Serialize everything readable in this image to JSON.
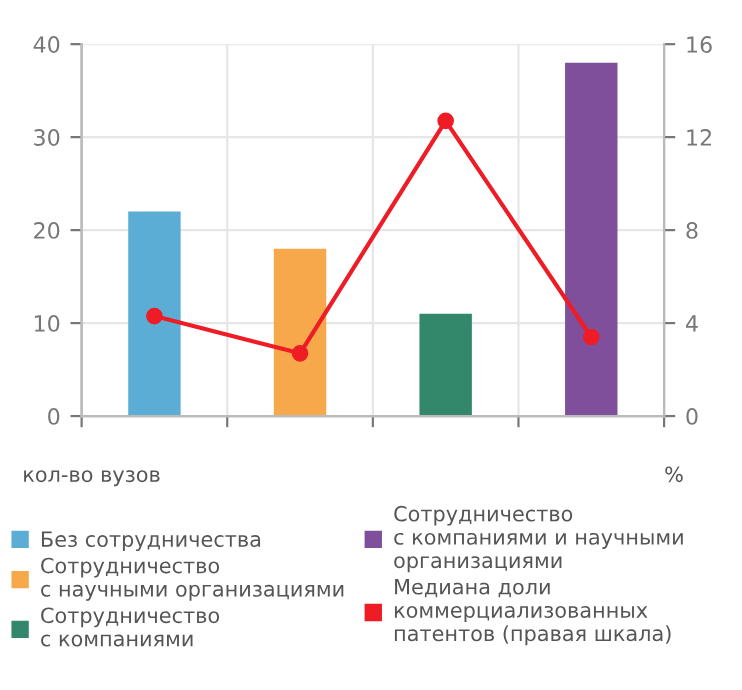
{
  "chart_data": {
    "type": "bar",
    "categories": [
      null,
      null,
      null,
      null
    ],
    "series": [
      {
        "name": "Без сотрудничества",
        "color": "#5badd6",
        "values": [
          22,
          null,
          null,
          null
        ]
      },
      {
        "name": "Сотрудничество\nс научными организациями",
        "color": "#f7a84a",
        "values": [
          null,
          18,
          null,
          null
        ]
      },
      {
        "name": "Сотрудничество\nс компаниями",
        "color": "#33876a",
        "values": [
          null,
          null,
          11,
          null
        ]
      },
      {
        "name": "Сотрудничество\nс компаниями и научными\nорганизациями",
        "color": "#7f4f9c",
        "values": [
          null,
          null,
          null,
          38
        ]
      },
      {
        "name": "Медиана доли\nкоммерциализованных\nпатентов (правая шкала)",
        "color": "#ee1c25",
        "type": "line",
        "axis": "y2",
        "values": [
          4.3,
          2.7,
          12.7,
          3.4
        ]
      }
    ],
    "ylim": [
      0,
      40
    ],
    "yticks": [
      0,
      10,
      20,
      30,
      40
    ],
    "y2lim": [
      0,
      16
    ],
    "y2ticks": [
      0,
      4,
      8,
      12,
      16
    ],
    "ylabel": "кол-во вузов",
    "y2label": "%",
    "grid": true,
    "legend": "bottom",
    "marker": "circle",
    "line_style": "solid"
  }
}
